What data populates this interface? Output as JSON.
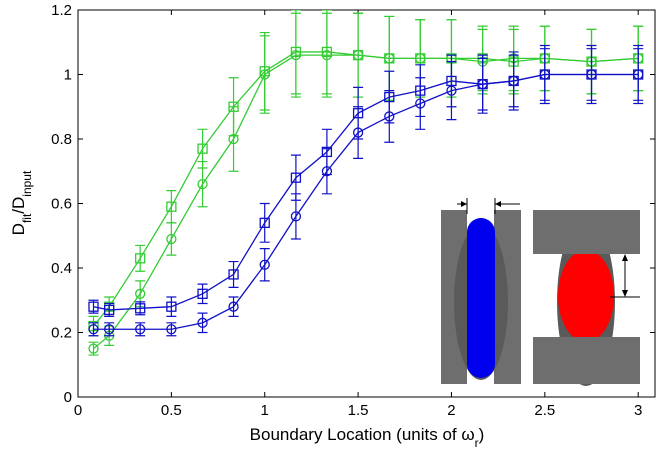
{
  "chart_data": {
    "type": "line",
    "xlabel": [
      {
        "text": "Boundary Location (units of ω"
      },
      {
        "text": "r",
        "sub": true
      },
      {
        "text": ")"
      }
    ],
    "ylabel": [
      {
        "text": "D"
      },
      {
        "text": "fit",
        "sub": true
      },
      {
        "text": "/D"
      },
      {
        "text": "input",
        "sub": true
      }
    ],
    "x": [
      0.083,
      0.167,
      0.333,
      0.5,
      0.667,
      0.833,
      1,
      1.167,
      1.333,
      1.5,
      1.667,
      1.833,
      2,
      2.167,
      2.333,
      2.5,
      2.75,
      3
    ],
    "series": [
      {
        "color": "#33cc33",
        "marker": "square",
        "values": [
          0.22,
          0.28,
          0.43,
          0.59,
          0.77,
          0.9,
          1.01,
          1.07,
          1.07,
          1.06,
          1.05,
          1.05,
          1.05,
          1.05,
          1.04,
          1.05,
          1.04,
          1.05
        ],
        "errors": [
          0.03,
          0.03,
          0.04,
          0.05,
          0.06,
          0.09,
          0.12,
          0.13,
          0.13,
          0.13,
          0.13,
          0.12,
          0.12,
          0.1,
          0.1,
          0.1,
          0.1,
          0.1
        ]
      },
      {
        "color": "#33cc33",
        "marker": "circle",
        "values": [
          0.15,
          0.19,
          0.32,
          0.49,
          0.66,
          0.8,
          1.0,
          1.06,
          1.06,
          1.06,
          1.05,
          1.05,
          1.05,
          1.04,
          1.05,
          1.05,
          1.04,
          1.05
        ],
        "errors": [
          0.02,
          0.03,
          0.04,
          0.05,
          0.07,
          0.1,
          0.12,
          0.13,
          0.13,
          0.13,
          0.13,
          0.12,
          0.12,
          0.1,
          0.1,
          0.1,
          0.1,
          0.1
        ]
      },
      {
        "color": "#1010c8",
        "marker": "square",
        "values": [
          0.28,
          0.27,
          0.275,
          0.28,
          0.32,
          0.38,
          0.54,
          0.68,
          0.76,
          0.88,
          0.93,
          0.95,
          0.98,
          0.97,
          0.98,
          1.0,
          1.0,
          1.0
        ],
        "errors": [
          0.02,
          0.02,
          0.02,
          0.03,
          0.03,
          0.04,
          0.06,
          0.07,
          0.07,
          0.08,
          0.08,
          0.08,
          0.08,
          0.08,
          0.08,
          0.08,
          0.08,
          0.08
        ]
      },
      {
        "color": "#1010c8",
        "marker": "circle",
        "values": [
          0.21,
          0.21,
          0.21,
          0.21,
          0.23,
          0.28,
          0.41,
          0.56,
          0.7,
          0.82,
          0.87,
          0.91,
          0.95,
          0.97,
          0.98,
          1.0,
          1.0,
          1.0
        ],
        "errors": [
          0.02,
          0.02,
          0.02,
          0.02,
          0.03,
          0.03,
          0.05,
          0.07,
          0.07,
          0.08,
          0.08,
          0.08,
          0.09,
          0.09,
          0.09,
          0.09,
          0.09,
          0.09
        ]
      }
    ],
    "xlim": [
      0,
      3.09
    ],
    "ylim": [
      0,
      1.2
    ],
    "xticks": [
      0,
      0.5,
      1,
      1.5,
      2,
      2.5,
      3
    ],
    "yticks": [
      0,
      0.2,
      0.4,
      0.6,
      0.8,
      1,
      1.2
    ]
  }
}
